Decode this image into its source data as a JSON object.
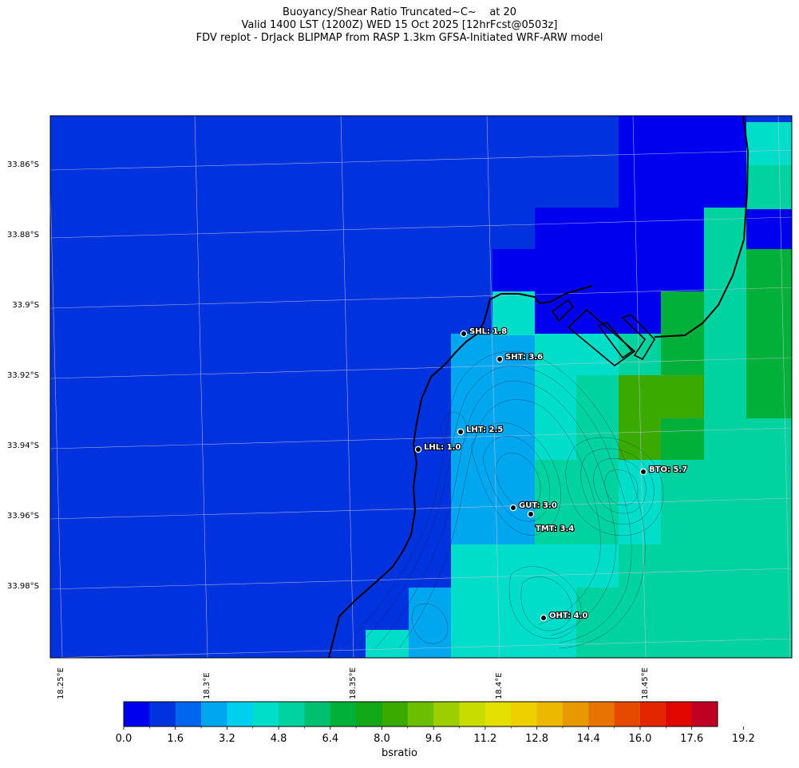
{
  "title": {
    "line1": "Buoyancy/Shear Ratio Truncated~C~    at 20",
    "line2": "Valid 1400 LST (1200Z) WED 15 Oct 2025 [12hrFcst@0503z]",
    "line3": "FDV replot - DrJack BLIPMAP from RASP 1.3km GFSA-Initiated WRF-ARW model"
  },
  "axes": {
    "lat_labels": [
      "33.86°S",
      "33.88°S",
      "33.9°S",
      "33.92°S",
      "33.94°S",
      "33.96°S",
      "33.98°S"
    ],
    "lon_labels": [
      "18.25°E",
      "18.3°E",
      "18.35°E",
      "18.4°E",
      "18.45°E"
    ]
  },
  "stations": [
    {
      "code": "SHL",
      "value": "1.8",
      "label": "SHL: 1.8"
    },
    {
      "code": "SHT",
      "value": "3.6",
      "label": "SHT: 3.6"
    },
    {
      "code": "LHT",
      "value": "2.5",
      "label": "LHT: 2.5"
    },
    {
      "code": "LHL",
      "value": "1.0",
      "label": "LHL: 1.0"
    },
    {
      "code": "BTO",
      "value": "5.7",
      "label": "BTO: 5.7"
    },
    {
      "code": "GUT",
      "value": "3.0",
      "label": "GUT: 3.0"
    },
    {
      "code": "TMT",
      "value": "3.4",
      "label": "TMT: 3.4"
    },
    {
      "code": "OHT",
      "value": "4.0",
      "label": "OHT: 4.0"
    }
  ],
  "colorbar": {
    "label": "bsratio",
    "ticks": [
      "0.0",
      "1.6",
      "3.2",
      "4.8",
      "6.4",
      "8.0",
      "9.6",
      "11.2",
      "12.8",
      "14.4",
      "16.0",
      "17.6",
      "19.2"
    ],
    "colors": [
      "#0000ee",
      "#0033dd",
      "#0066ee",
      "#00a6ee",
      "#00d0ee",
      "#00ddc8",
      "#00d2a0",
      "#00c070",
      "#00b038",
      "#12a818",
      "#3aaa00",
      "#6cbf00",
      "#9dcf00",
      "#c8dc00",
      "#e4e000",
      "#ecd000",
      "#ecb800",
      "#e89800",
      "#e87400",
      "#e64a00",
      "#e42600",
      "#e00800",
      "#c00022"
    ]
  },
  "field_colors": {
    "sea": "#0033dd",
    "deep": "#0000ee",
    "lightblue": "#00a6ee",
    "cyan": "#00ddc8",
    "teal": "#00d2a0",
    "green": "#00b038",
    "lime": "#3aaa00"
  }
}
